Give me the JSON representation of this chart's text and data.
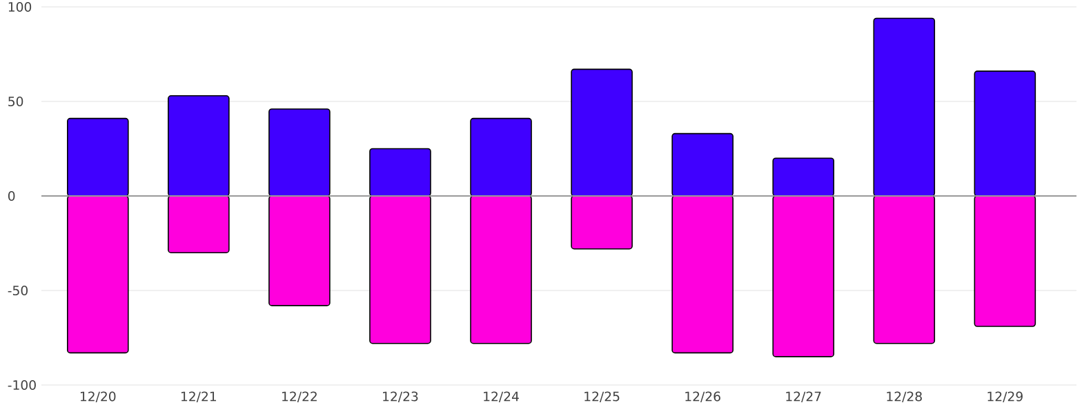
{
  "chart_data": {
    "type": "bar",
    "stacked": true,
    "categories": [
      "12/20",
      "12/21",
      "12/22",
      "12/23",
      "12/24",
      "12/25",
      "12/26",
      "12/27",
      "12/28",
      "12/29"
    ],
    "series": [
      {
        "color": "#4000ff",
        "values": [
          41,
          53,
          46,
          25,
          41,
          67,
          33,
          20,
          94,
          66
        ]
      },
      {
        "color": "#ff00dd",
        "values": [
          -83,
          -30,
          -58,
          -78,
          -78,
          -28,
          -83,
          -85,
          -78,
          -69
        ]
      }
    ],
    "ylim": [
      -100,
      100
    ],
    "yticks": [
      -100,
      -50,
      0,
      50,
      100
    ],
    "grid": "y",
    "ref_lines": [
      {
        "axis": "y",
        "value": 0,
        "color": "#999999"
      }
    ]
  }
}
